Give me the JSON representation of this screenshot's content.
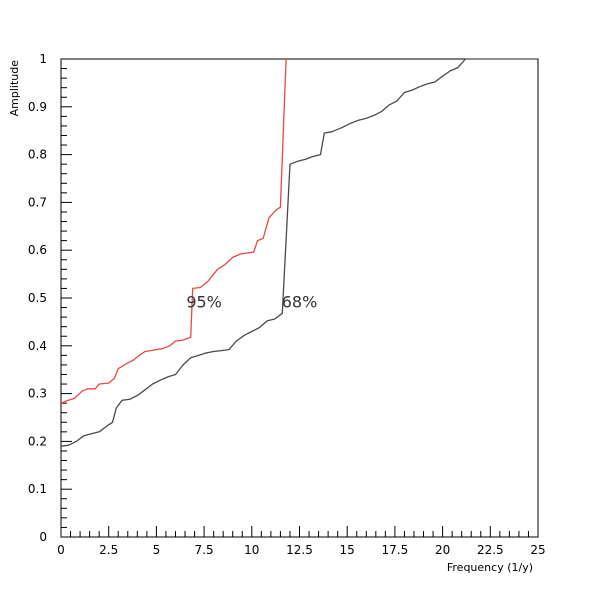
{
  "chart_data": {
    "type": "line",
    "xlabel": "Frequency (1/y)",
    "ylabel": "Amplitude",
    "xlim": [
      0,
      25
    ],
    "ylim": [
      0,
      1
    ],
    "x_ticks": [
      "0",
      "2.5",
      "5",
      "7.5",
      "10",
      "12.5",
      "15",
      "17.5",
      "20",
      "22.5",
      "25"
    ],
    "y_ticks": [
      "0",
      "0.1",
      "0.2",
      "0.3",
      "0.4",
      "0.5",
      "0.6",
      "0.7",
      "0.8",
      "0.9",
      "1"
    ],
    "grid": false,
    "annotations": [
      {
        "text": "95%",
        "x": 7.5,
        "y": 0.48
      },
      {
        "text": "68%",
        "x": 12.5,
        "y": 0.48
      }
    ],
    "series": [
      {
        "color": "#e8483f",
        "points": [
          [
            0,
            0.28
          ],
          [
            0.3,
            0.285
          ],
          [
            0.7,
            0.29
          ],
          [
            1.1,
            0.305
          ],
          [
            1.4,
            0.31
          ],
          [
            1.8,
            0.31
          ],
          [
            2.0,
            0.32
          ],
          [
            2.5,
            0.322
          ],
          [
            2.8,
            0.332
          ],
          [
            3.0,
            0.352
          ],
          [
            3.4,
            0.362
          ],
          [
            3.8,
            0.37
          ],
          [
            4.1,
            0.38
          ],
          [
            4.4,
            0.388
          ],
          [
            4.7,
            0.39
          ],
          [
            5.0,
            0.392
          ],
          [
            5.3,
            0.394
          ],
          [
            5.7,
            0.4
          ],
          [
            6.0,
            0.41
          ],
          [
            6.4,
            0.412
          ],
          [
            6.8,
            0.418
          ],
          [
            6.9,
            0.52
          ],
          [
            7.3,
            0.522
          ],
          [
            7.7,
            0.535
          ],
          [
            8.2,
            0.56
          ],
          [
            8.6,
            0.57
          ],
          [
            9.0,
            0.585
          ],
          [
            9.4,
            0.592
          ],
          [
            9.7,
            0.594
          ],
          [
            10.1,
            0.596
          ],
          [
            10.3,
            0.62
          ],
          [
            10.6,
            0.625
          ],
          [
            10.9,
            0.668
          ],
          [
            11.3,
            0.685
          ],
          [
            11.5,
            0.69
          ],
          [
            11.8,
            1.0
          ]
        ]
      },
      {
        "color": "#4a4a4a",
        "points": [
          [
            0,
            0.19
          ],
          [
            0.4,
            0.192
          ],
          [
            0.8,
            0.2
          ],
          [
            1.2,
            0.212
          ],
          [
            1.6,
            0.216
          ],
          [
            2.0,
            0.22
          ],
          [
            2.4,
            0.232
          ],
          [
            2.7,
            0.24
          ],
          [
            2.9,
            0.27
          ],
          [
            3.2,
            0.286
          ],
          [
            3.6,
            0.288
          ],
          [
            4.0,
            0.296
          ],
          [
            4.4,
            0.308
          ],
          [
            4.8,
            0.32
          ],
          [
            5.2,
            0.328
          ],
          [
            5.6,
            0.335
          ],
          [
            6.0,
            0.34
          ],
          [
            6.4,
            0.36
          ],
          [
            6.8,
            0.375
          ],
          [
            7.2,
            0.38
          ],
          [
            7.6,
            0.385
          ],
          [
            8.0,
            0.388
          ],
          [
            8.4,
            0.39
          ],
          [
            8.8,
            0.392
          ],
          [
            9.2,
            0.41
          ],
          [
            9.6,
            0.422
          ],
          [
            10.0,
            0.43
          ],
          [
            10.4,
            0.438
          ],
          [
            10.8,
            0.452
          ],
          [
            11.2,
            0.456
          ],
          [
            11.6,
            0.468
          ],
          [
            12.0,
            0.78
          ],
          [
            12.4,
            0.786
          ],
          [
            12.8,
            0.79
          ],
          [
            13.2,
            0.796
          ],
          [
            13.6,
            0.8
          ],
          [
            13.8,
            0.845
          ],
          [
            14.2,
            0.848
          ],
          [
            14.7,
            0.856
          ],
          [
            15.2,
            0.866
          ],
          [
            15.6,
            0.872
          ],
          [
            16.0,
            0.876
          ],
          [
            16.4,
            0.882
          ],
          [
            16.8,
            0.89
          ],
          [
            17.2,
            0.904
          ],
          [
            17.6,
            0.912
          ],
          [
            18.0,
            0.93
          ],
          [
            18.4,
            0.935
          ],
          [
            18.8,
            0.942
          ],
          [
            19.2,
            0.948
          ],
          [
            19.6,
            0.952
          ],
          [
            20.0,
            0.964
          ],
          [
            20.4,
            0.975
          ],
          [
            20.8,
            0.982
          ],
          [
            21.2,
            1.0
          ],
          [
            25,
            1.0
          ]
        ]
      }
    ]
  }
}
